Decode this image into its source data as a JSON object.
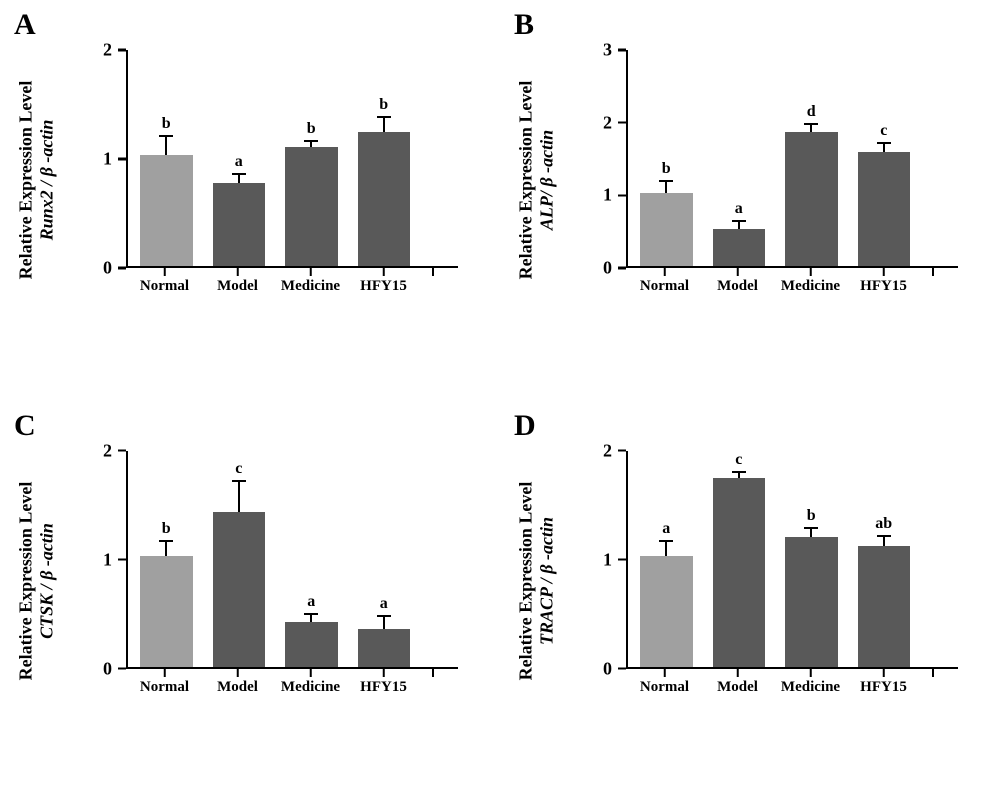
{
  "colors": {
    "bar_light": "#a0a0a0",
    "bar_dark": "#595959",
    "axis": "#000000",
    "background": "#ffffff"
  },
  "typography": {
    "panel_label_fontsize": 30,
    "axis_title_fontsize": 18,
    "tick_fontsize": 18,
    "sig_fontsize": 16,
    "font_family": "Times New Roman"
  },
  "categories": [
    "Normal",
    "Model",
    "Medicine",
    "HFY15"
  ],
  "panels": {
    "A": {
      "label": "A",
      "type": "bar",
      "y_title_line1": "Relative Expression Level",
      "y_title_line2": "Runx2 / β -actin",
      "ylim": [
        0,
        2
      ],
      "yticks": [
        0,
        1,
        2
      ],
      "bars": [
        {
          "cat": "Normal",
          "value": 1.03,
          "err": 0.18,
          "sig": "b",
          "color": "#a0a0a0"
        },
        {
          "cat": "Model",
          "value": 0.77,
          "err": 0.09,
          "sig": "a",
          "color": "#595959"
        },
        {
          "cat": "Medicine",
          "value": 1.1,
          "err": 0.07,
          "sig": "b",
          "color": "#595959"
        },
        {
          "cat": "HFY15",
          "value": 1.24,
          "err": 0.15,
          "sig": "b",
          "color": "#595959"
        }
      ]
    },
    "B": {
      "label": "B",
      "type": "bar",
      "y_title_line1": "Relative Expression Level",
      "y_title_line2": "ALP/ β -actin",
      "ylim": [
        0,
        3
      ],
      "yticks": [
        0,
        1,
        2,
        3
      ],
      "bars": [
        {
          "cat": "Normal",
          "value": 1.02,
          "err": 0.18,
          "sig": "b",
          "color": "#a0a0a0"
        },
        {
          "cat": "Model",
          "value": 0.52,
          "err": 0.12,
          "sig": "a",
          "color": "#595959"
        },
        {
          "cat": "Medicine",
          "value": 1.86,
          "err": 0.13,
          "sig": "d",
          "color": "#595959"
        },
        {
          "cat": "HFY15",
          "value": 1.58,
          "err": 0.14,
          "sig": "c",
          "color": "#595959"
        }
      ]
    },
    "C": {
      "label": "C",
      "type": "bar",
      "y_title_line1": "Relative Expression Level",
      "y_title_line2": "CTSK / β -actin",
      "ylim": [
        0,
        2
      ],
      "yticks": [
        0,
        1,
        2
      ],
      "bars": [
        {
          "cat": "Normal",
          "value": 1.02,
          "err": 0.15,
          "sig": "b",
          "color": "#a0a0a0"
        },
        {
          "cat": "Model",
          "value": 1.43,
          "err": 0.3,
          "sig": "c",
          "color": "#595959"
        },
        {
          "cat": "Medicine",
          "value": 0.41,
          "err": 0.09,
          "sig": "a",
          "color": "#595959"
        },
        {
          "cat": "HFY15",
          "value": 0.35,
          "err": 0.13,
          "sig": "a",
          "color": "#595959"
        }
      ]
    },
    "D": {
      "label": "D",
      "type": "bar",
      "y_title_line1": "Relative Expression Level",
      "y_title_line2": "TRACP / β -actin",
      "ylim": [
        0,
        2
      ],
      "yticks": [
        0,
        1,
        2
      ],
      "bars": [
        {
          "cat": "Normal",
          "value": 1.02,
          "err": 0.15,
          "sig": "a",
          "color": "#a0a0a0"
        },
        {
          "cat": "Model",
          "value": 1.75,
          "err": 0.06,
          "sig": "c",
          "color": "#595959"
        },
        {
          "cat": "Medicine",
          "value": 1.2,
          "err": 0.09,
          "sig": "b",
          "color": "#595959"
        },
        {
          "cat": "HFY15",
          "value": 1.12,
          "err": 0.1,
          "sig": "ab",
          "color": "#595959"
        }
      ]
    }
  }
}
